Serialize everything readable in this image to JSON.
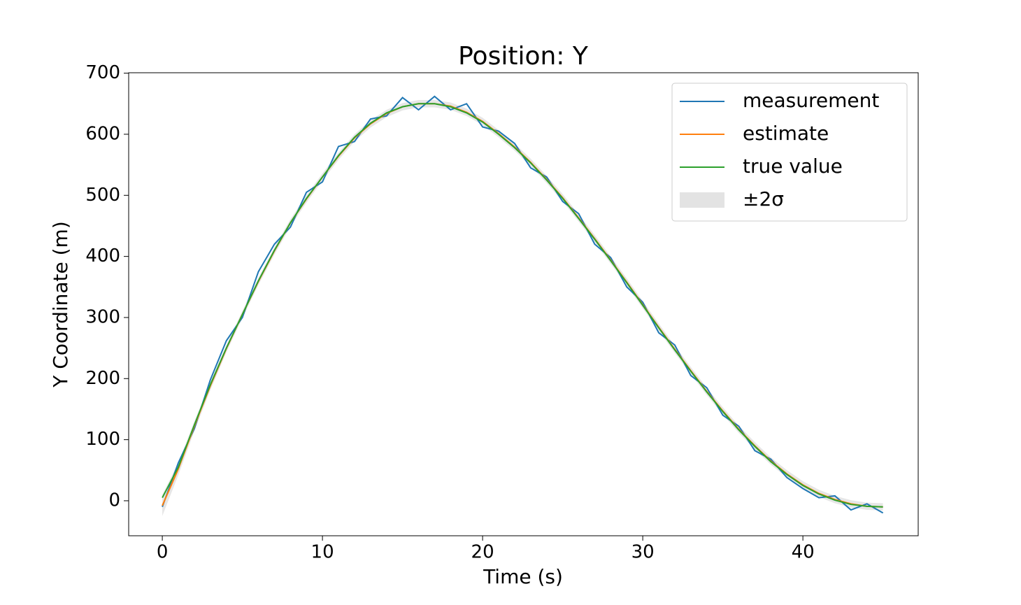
{
  "chart_data": {
    "type": "line",
    "title": "Position: Y",
    "x_label": "Time (s)",
    "y_label": "Y Coordinate (m)",
    "x": [
      0,
      1,
      2,
      3,
      4,
      5,
      6,
      7,
      8,
      9,
      10,
      11,
      12,
      13,
      14,
      15,
      16,
      17,
      18,
      19,
      20,
      21,
      22,
      23,
      24,
      25,
      26,
      27,
      28,
      29,
      30,
      31,
      32,
      33,
      34,
      35,
      36,
      37,
      38,
      39,
      40,
      41,
      42,
      43,
      44,
      45
    ],
    "series": [
      {
        "name": "measurement",
        "color": "#1f77b4",
        "values": [
          -10,
          62,
          118,
          198,
          262,
          300,
          375,
          420,
          448,
          505,
          522,
          580,
          588,
          625,
          630,
          660,
          640,
          662,
          640,
          650,
          612,
          605,
          585,
          545,
          530,
          490,
          470,
          420,
          398,
          350,
          325,
          275,
          255,
          205,
          185,
          140,
          122,
          82,
          68,
          38,
          20,
          5,
          8,
          -15,
          -5,
          -20
        ]
      },
      {
        "name": "estimate",
        "color": "#ff7f0e",
        "values": [
          -8,
          52,
          122,
          188,
          249,
          305,
          359,
          409,
          455,
          494,
          530,
          564,
          594,
          617,
          634,
          645,
          650,
          650,
          646,
          636,
          621,
          601,
          579,
          554,
          526,
          496,
          463,
          429,
          394,
          358,
          321,
          284,
          248,
          213,
          179,
          147,
          117,
          90,
          65,
          44,
          26,
          12,
          2,
          -5,
          -9,
          -10
        ]
      },
      {
        "name": "true value",
        "color": "#2ca02c",
        "values": [
          5,
          55,
          124,
          190,
          250,
          305,
          360,
          410,
          455,
          495,
          530,
          565,
          595,
          618,
          635,
          645,
          650,
          650,
          645,
          635,
          620,
          600,
          578,
          553,
          525,
          495,
          462,
          428,
          393,
          357,
          320,
          283,
          247,
          212,
          178,
          146,
          116,
          89,
          64,
          43,
          25,
          11,
          1,
          -6,
          -9,
          -10
        ]
      },
      {
        "name": "±2σ",
        "color": "#e3e3e3",
        "type": "band",
        "lower": [
          -25,
          42,
          114,
          181,
          243,
          299,
          353,
          403,
          449,
          488,
          524,
          558,
          588,
          611,
          628,
          639,
          644,
          644,
          640,
          630,
          615,
          595,
          573,
          548,
          520,
          490,
          457,
          423,
          388,
          352,
          315,
          278,
          242,
          207,
          173,
          141,
          111,
          84,
          59,
          38,
          20,
          6,
          -4,
          -11,
          -15,
          -16
        ],
        "upper": [
          10,
          62,
          130,
          195,
          255,
          311,
          365,
          415,
          461,
          500,
          536,
          570,
          600,
          623,
          640,
          651,
          656,
          656,
          652,
          642,
          627,
          607,
          585,
          560,
          532,
          502,
          469,
          435,
          400,
          364,
          327,
          290,
          254,
          219,
          185,
          153,
          123,
          96,
          71,
          50,
          32,
          18,
          8,
          1,
          -3,
          -4
        ]
      }
    ],
    "xlim": [
      -2.1,
      47.2
    ],
    "ylim": [
      -57.3,
      700.7
    ],
    "xticks": [
      0,
      10,
      20,
      30,
      40
    ],
    "yticks": [
      0,
      100,
      200,
      300,
      400,
      500,
      600,
      700
    ],
    "legend": "upper right",
    "grid": false
  }
}
